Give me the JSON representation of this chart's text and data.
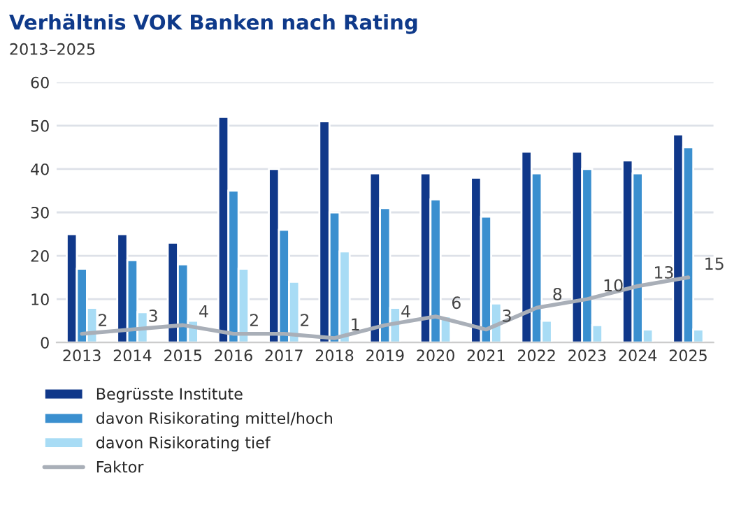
{
  "chart_data": {
    "type": "bar",
    "title": "Verhältnis VOK Banken nach Rating",
    "subtitle": "2013–2025",
    "categories": [
      "2013",
      "2014",
      "2015",
      "2016",
      "2017",
      "2018",
      "2019",
      "2020",
      "2021",
      "2022",
      "2023",
      "2024",
      "2025"
    ],
    "series": [
      {
        "name": "Begrüsste Institute",
        "color": "#10388a",
        "values": [
          25,
          25,
          23,
          52,
          40,
          51,
          39,
          39,
          38,
          44,
          44,
          42,
          48
        ]
      },
      {
        "name": "davon Risikorating mittel/hoch",
        "color": "#3a8fcf",
        "values": [
          17,
          19,
          18,
          35,
          26,
          30,
          31,
          33,
          29,
          39,
          40,
          39,
          45
        ]
      },
      {
        "name": "davon Risikorating tief",
        "color": "#a8dcf5",
        "values": [
          8,
          7,
          5,
          17,
          14,
          21,
          8,
          6,
          9,
          5,
          4,
          3,
          3
        ]
      },
      {
        "name": "Faktor",
        "type": "line",
        "color": "#a9afb8",
        "values": [
          2,
          3,
          4,
          2,
          2,
          1,
          4,
          6,
          3,
          8,
          10,
          13,
          15
        ],
        "value_labels": [
          "2",
          "3",
          "4",
          "2",
          "2",
          "1",
          "4",
          "6",
          "3",
          "8",
          "10",
          "13",
          "15"
        ]
      }
    ],
    "ylim": [
      0,
      60
    ],
    "yticks": [
      0,
      10,
      20,
      30,
      40,
      50,
      60
    ],
    "grid": "y",
    "legend": "bottom"
  }
}
